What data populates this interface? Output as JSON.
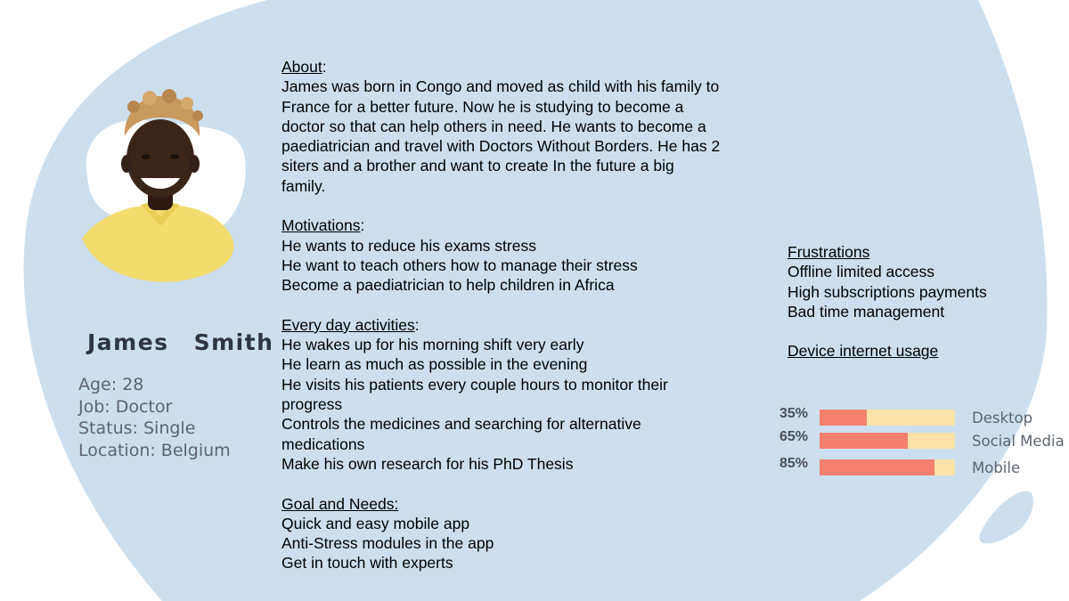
{
  "persona": {
    "first_name": "James",
    "last_name": "Smith",
    "details": [
      "Age: 28",
      "Job: Doctor",
      "Status: Single",
      "Location: Belgium"
    ]
  },
  "about": {
    "heading": "About",
    "lines": [
      "James was born in Congo and moved as child with his family to",
      "France for a better future. Now he is studying to become a",
      "doctor so that can help others in need. He wants to become a",
      "paediatrician and travel with Doctors Without Borders. He has 2",
      "siters and a brother and want to create  In the future a big",
      "family."
    ]
  },
  "motivations": {
    "heading": "Motivations",
    "lines": [
      "He wants to reduce his exams stress",
      "He want to teach others how to manage their stress",
      "Become a paediatrician to help children in Africa"
    ]
  },
  "activities": {
    "heading": "Every day activities",
    "lines": [
      "He wakes up for his morning shift very early",
      "He learn as much as possible in the evening",
      "He visits his patients every couple hours to monitor their",
      "progress",
      "Controls the medicines and searching for alternative",
      "medications",
      "Make his own research for his PhD Thesis"
    ]
  },
  "goals": {
    "heading": "Goal and Needs:",
    "lines": [
      "Quick and easy mobile app",
      "Anti-Stress modules in the app",
      "Get in touch with experts"
    ]
  },
  "frustrations": {
    "heading": "Frustrations",
    "lines": [
      "Offline limited access",
      "High subscriptions payments",
      "Bad time management"
    ]
  },
  "usage": {
    "heading": "Device internet usage",
    "items": [
      {
        "label": "Desktop",
        "percent_text": "35%",
        "value": 35
      },
      {
        "label": "Social Media",
        "percent_text": "65%",
        "value": 65
      },
      {
        "label": "Mobile",
        "percent_text": "85%",
        "value": 85
      }
    ],
    "colors": {
      "fill": "#f5806e",
      "track": "#fde3a7"
    }
  },
  "colors": {
    "blob": "#cddfee",
    "photo_backdrop": "#ffffff",
    "shirt": "#f2dc6e",
    "skin": "#3b2418"
  }
}
